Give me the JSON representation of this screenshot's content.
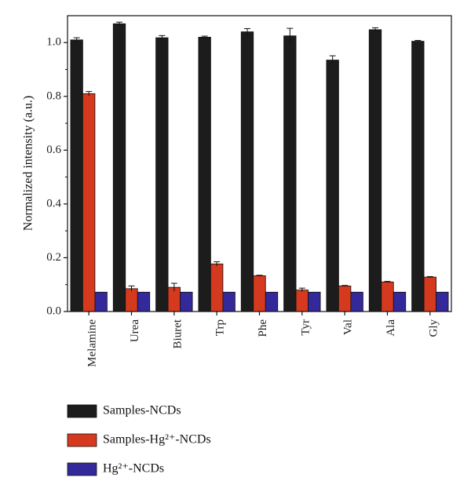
{
  "chart_data": {
    "type": "bar",
    "categories": [
      "Melamine",
      "Urea",
      "Biuret",
      "Trp",
      "Phe",
      "Tyr",
      "Val",
      "Ala",
      "Gly"
    ],
    "series": [
      {
        "name": "Samples-NCDs",
        "color": "#1c1c1c",
        "values": [
          1.01,
          1.07,
          1.018,
          1.02,
          1.04,
          1.025,
          0.935,
          1.048,
          1.005
        ],
        "errors": [
          0.008,
          0.006,
          0.008,
          0.004,
          0.012,
          0.028,
          0.016,
          0.007,
          0.003
        ]
      },
      {
        "name": "Samples-Hg²⁺-NCDs",
        "color": "#d63a1e",
        "values": [
          0.81,
          0.085,
          0.09,
          0.177,
          0.133,
          0.08,
          0.095,
          0.11,
          0.128
        ],
        "errors": [
          0.008,
          0.01,
          0.015,
          0.008,
          0.002,
          0.007,
          0.002,
          0.002,
          0.002
        ]
      },
      {
        "name": "Hg²⁺-NCDs",
        "color": "#33299a",
        "values": [
          0.072,
          0.072,
          0.072,
          0.072,
          0.072,
          0.072,
          0.072,
          0.072,
          0.072
        ],
        "errors": [
          0,
          0,
          0,
          0,
          0,
          0,
          0,
          0,
          0
        ]
      }
    ],
    "ylabel": "Normalized intensity (a.u.)",
    "xlabel": "",
    "ylim": [
      0,
      1.1
    ],
    "yticks": [
      "0.0",
      "0.2",
      "0.4",
      "0.6",
      "0.8",
      "1.0"
    ],
    "grid": false,
    "legend_position": "bottom"
  }
}
